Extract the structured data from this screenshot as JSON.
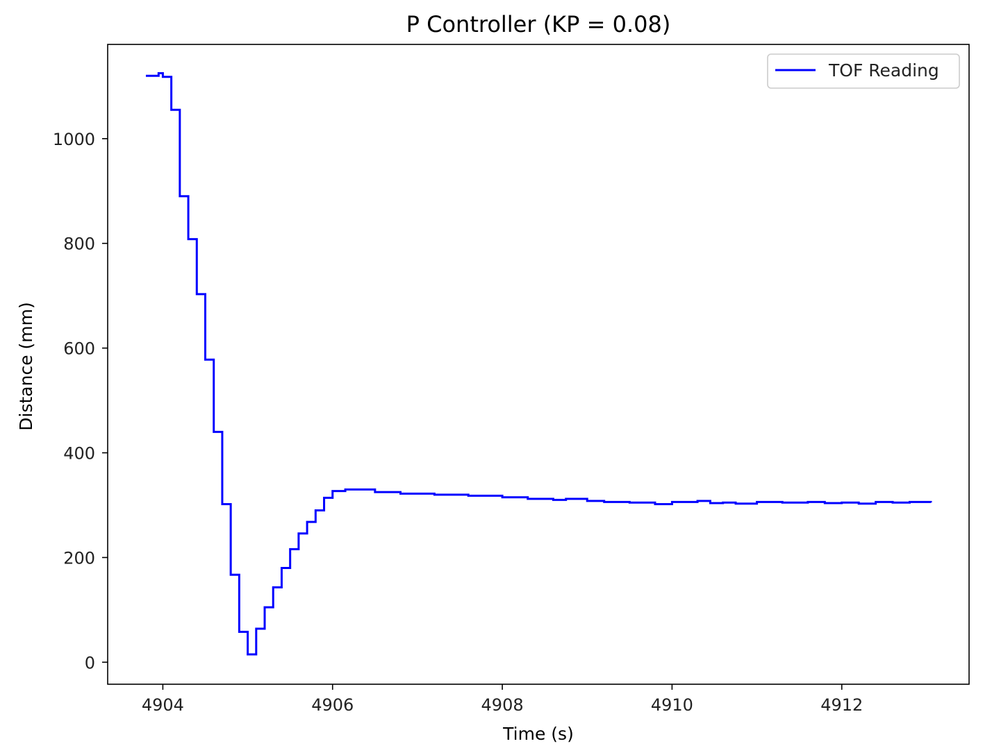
{
  "chart_data": {
    "type": "line",
    "title": "P Controller (KP = 0.08)",
    "xlabel": "Time (s)",
    "ylabel": "Distance (mm)",
    "xlim": [
      4903.35,
      4913.5
    ],
    "ylim": [
      -42,
      1180
    ],
    "xticks": [
      4904,
      4906,
      4908,
      4910,
      4912
    ],
    "yticks": [
      0,
      200,
      400,
      600,
      800,
      1000
    ],
    "xtick_labels": [
      "4904",
      "4906",
      "4908",
      "4910",
      "4912"
    ],
    "ytick_labels": [
      "0",
      "200",
      "400",
      "600",
      "800",
      "1000"
    ],
    "grid": false,
    "legend_position": "top-right",
    "step": "post",
    "series": [
      {
        "name": "TOF Reading",
        "color": "#0000ff",
        "x": [
          4903.8,
          4903.9,
          4903.95,
          4904.0,
          4904.1,
          4904.2,
          4904.3,
          4904.4,
          4904.5,
          4904.6,
          4904.7,
          4904.8,
          4904.9,
          4905.0,
          4905.1,
          4905.2,
          4905.3,
          4905.4,
          4905.5,
          4905.6,
          4905.7,
          4905.8,
          4905.9,
          4906.0,
          4906.15,
          4906.5,
          4906.8,
          4907.2,
          4907.6,
          4908.0,
          4908.3,
          4908.6,
          4908.75,
          4909.0,
          4909.2,
          4909.5,
          4909.8,
          4910.0,
          4910.3,
          4910.45,
          4910.6,
          4910.75,
          4911.0,
          4911.3,
          4911.6,
          4911.8,
          4912.0,
          4912.2,
          4912.4,
          4912.6,
          4912.8,
          4913.05
        ],
        "y": [
          1120,
          1120,
          1125,
          1118,
          1055,
          890,
          808,
          703,
          578,
          440,
          302,
          167,
          58,
          15,
          64,
          105,
          143,
          180,
          216,
          246,
          268,
          290,
          314,
          327,
          330,
          325,
          322,
          320,
          318,
          315,
          312,
          310,
          312,
          308,
          306,
          305,
          302,
          306,
          308,
          304,
          305,
          303,
          306,
          305,
          306,
          304,
          305,
          303,
          306,
          305,
          306,
          305
        ]
      }
    ]
  }
}
